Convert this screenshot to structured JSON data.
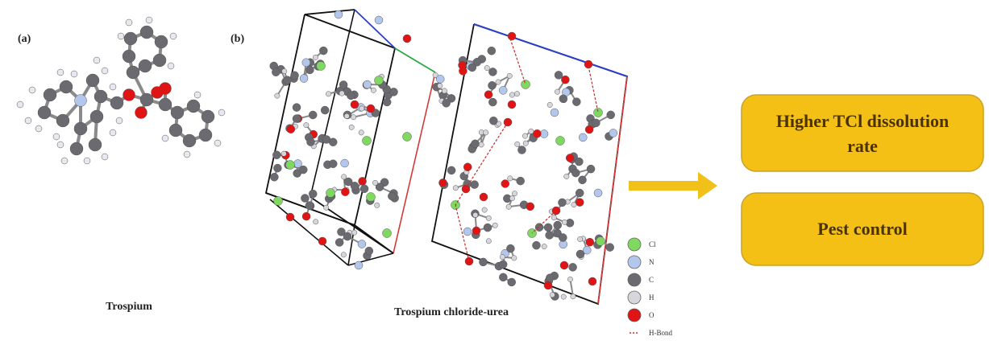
{
  "panels": {
    "a": {
      "label": "(a)",
      "caption": "Trospium"
    },
    "b": {
      "label": "(b)",
      "caption": "Trospium chloride-urea"
    }
  },
  "legend": [
    {
      "symbol": "Cl",
      "color": "#7fd860"
    },
    {
      "symbol": "N",
      "color": "#b3c7ec"
    },
    {
      "symbol": "C",
      "color": "#6a6a70"
    },
    {
      "symbol": "H",
      "color": "#d6d6dc"
    },
    {
      "symbol": "O",
      "color": "#e01414"
    },
    {
      "symbol": "H-Bond",
      "color": "#c82828"
    }
  ],
  "outcomes": [
    {
      "lines": [
        "Higher TCl dissolution",
        "rate"
      ]
    },
    {
      "lines": [
        "Pest control"
      ]
    }
  ],
  "colors": {
    "box_fill": "#f5c016",
    "box_stroke": "#c9a227",
    "arrow": "#f1c11a",
    "cell_black": "#111111",
    "cell_red": "#d23a3a",
    "cell_blue": "#2a3fc8",
    "cell_green": "#2da84a"
  }
}
